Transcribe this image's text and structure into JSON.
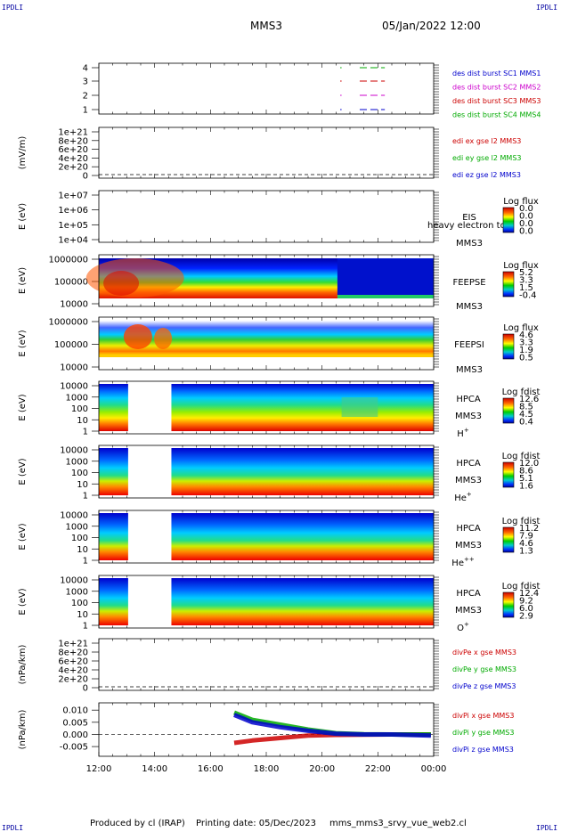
{
  "corner_label": "IPDLI",
  "title": "MMS3",
  "timestamp": "05/Jan/2022 12:00",
  "footer": {
    "produced": "Produced by cl (IRAP)",
    "printing": "Printing date: 05/Dec/2023",
    "script": "mms_mms3_srvy_vue_web2.cl"
  },
  "chart_data": {
    "type": "heatmap",
    "x_ticks": [
      "12:00",
      "14:00",
      "16:00",
      "18:00",
      "20:00",
      "22:00",
      "00:00"
    ],
    "x_range_hours": [
      12,
      24
    ],
    "panels": [
      {
        "id": "burst",
        "type": "line",
        "yticks": [
          "4",
          "3",
          "2",
          "1"
        ],
        "legend": [
          {
            "text": "des dist burst SC1 MMS1",
            "color": "#0000cc"
          },
          {
            "text": "des dist burst SC2 MMS2",
            "color": "#cc00cc"
          },
          {
            "text": "des dist burst SC3 MMS3",
            "color": "#cc0000"
          },
          {
            "text": "des dist burst SC4 MMS4",
            "color": "#00aa00"
          }
        ],
        "series": [
          {
            "level": 4,
            "color": "#00aa00",
            "segments": [
              [
                20.65,
                20.7
              ],
              [
                21.35,
                22.25
              ]
            ]
          },
          {
            "level": 3,
            "color": "#cc0000",
            "segments": [
              [
                20.65,
                20.7
              ],
              [
                21.35,
                22.25
              ]
            ]
          },
          {
            "level": 2,
            "color": "#cc00cc",
            "segments": [
              [
                20.65,
                20.7
              ],
              [
                21.35,
                22.25
              ]
            ]
          },
          {
            "level": 1,
            "color": "#0000cc",
            "segments": [
              [
                20.65,
                20.7
              ],
              [
                21.35,
                22.25
              ]
            ]
          }
        ]
      },
      {
        "id": "edi",
        "type": "line",
        "ylabel": "(mV/m)",
        "yticks": [
          "1e+21",
          "8e+20",
          "6e+20",
          "4e+20",
          "2e+20",
          "0"
        ],
        "legend": [
          {
            "text": "edi ex gse l2 MMS3",
            "color": "#cc0000"
          },
          {
            "text": "edi ey gse l2 MMS3",
            "color": "#00aa00"
          },
          {
            "text": "edi ez gse l2 MMS3",
            "color": "#0000cc"
          }
        ]
      },
      {
        "id": "eis",
        "type": "heatmap",
        "ylabel": "E (eV)",
        "yticks": [
          "1e+07",
          "1e+06",
          "1e+05",
          "1e+04"
        ],
        "name": "EIS",
        "sub": "MMS3",
        "overlay": "heavy electron to",
        "cbar": {
          "title": "Log flux",
          "ticks": [
            "0.0",
            "0.0",
            "0.0",
            "0.0"
          ]
        }
      },
      {
        "id": "feepse",
        "type": "heatmap",
        "ylabel": "E (eV)",
        "yticks": [
          "1000000",
          "100000",
          "10000"
        ],
        "name": "FEEPSE",
        "sub": "MMS3",
        "cbar": {
          "title": "Log flux",
          "ticks": [
            "5.2",
            "3.3",
            "1.5",
            "-0.4"
          ]
        }
      },
      {
        "id": "feepsi",
        "type": "heatmap",
        "ylabel": "E (eV)",
        "yticks": [
          "1000000",
          "100000",
          "10000"
        ],
        "name": "FEEPSI",
        "sub": "MMS3",
        "cbar": {
          "title": "Log flux",
          "ticks": [
            "4.6",
            "3.3",
            "1.9",
            "0.5"
          ]
        }
      },
      {
        "id": "hpca_h",
        "type": "heatmap",
        "ylabel": "E (eV)",
        "yticks": [
          "10000",
          "1000",
          "100",
          "10",
          "1"
        ],
        "name": "HPCA",
        "sub": "MMS3",
        "species": "H",
        "charge": "+",
        "gap_hours": [
          13.05,
          14.6
        ],
        "cbar": {
          "title": "Log fdist",
          "ticks": [
            "12.6",
            "8.5",
            "4.5",
            "0.4"
          ]
        }
      },
      {
        "id": "hpca_he",
        "type": "heatmap",
        "ylabel": "E (eV)",
        "yticks": [
          "10000",
          "1000",
          "100",
          "10",
          "1"
        ],
        "name": "HPCA",
        "sub": "MMS3",
        "species": "He",
        "charge": "+",
        "gap_hours": [
          13.05,
          14.6
        ],
        "cbar": {
          "title": "Log fdist",
          "ticks": [
            "12.0",
            "8.6",
            "5.1",
            "1.6"
          ]
        }
      },
      {
        "id": "hpca_hepp",
        "type": "heatmap",
        "ylabel": "E (eV)",
        "yticks": [
          "10000",
          "1000",
          "100",
          "10",
          "1"
        ],
        "name": "HPCA",
        "sub": "MMS3",
        "species": "He",
        "charge": "++",
        "gap_hours": [
          13.05,
          14.6
        ],
        "cbar": {
          "title": "Log fdist",
          "ticks": [
            "11.2",
            "7.9",
            "4.6",
            "1.3"
          ]
        }
      },
      {
        "id": "hpca_o",
        "type": "heatmap",
        "ylabel": "E (eV)",
        "yticks": [
          "10000",
          "1000",
          "100",
          "10",
          "1"
        ],
        "name": "HPCA",
        "sub": "MMS3",
        "species": "O",
        "charge": "+",
        "gap_hours": [
          13.05,
          14.6
        ],
        "cbar": {
          "title": "Log fdist",
          "ticks": [
            "12.4",
            "9.2",
            "6.0",
            "2.9"
          ]
        }
      },
      {
        "id": "divpe",
        "type": "line",
        "ylabel": "(nPa/km)",
        "yticks": [
          "1e+21",
          "8e+20",
          "6e+20",
          "4e+20",
          "2e+20",
          "0"
        ],
        "legend": [
          {
            "text": "divPe x gse MMS3",
            "color": "#cc0000"
          },
          {
            "text": "divPe y gse MMS3",
            "color": "#00aa00"
          },
          {
            "text": "divPe z gse MMS3",
            "color": "#0000cc"
          }
        ]
      },
      {
        "id": "divpi",
        "type": "line",
        "ylabel": "(nPa/km)",
        "yticks": [
          "0.010",
          "0.005",
          "0.000",
          "-0.005"
        ],
        "ylim": [
          -0.009,
          0.013
        ],
        "legend": [
          {
            "text": "divPi x gse MMS3",
            "color": "#cc0000"
          },
          {
            "text": "divPi y gse MMS3",
            "color": "#00aa00"
          },
          {
            "text": "divPi z gse MMS3",
            "color": "#0000cc"
          }
        ],
        "series": [
          {
            "name": "divPi x gse MMS3",
            "color": "#cc0000",
            "x": [
              16.85,
              17.5,
              18.5,
              19.5,
              20.5,
              21.5,
              22.5,
              23.9
            ],
            "y": [
              -0.0035,
              -0.0025,
              -0.0015,
              -0.0005,
              -0.0002,
              -0.0001,
              0.0,
              0.0
            ]
          },
          {
            "name": "divPi y gse MMS3",
            "color": "#00aa00",
            "x": [
              16.85,
              17.5,
              18.5,
              19.5,
              20.5,
              21.5,
              22.5,
              23.9
            ],
            "y": [
              0.009,
              0.006,
              0.004,
              0.002,
              0.0005,
              0.0001,
              0.0,
              0.0
            ]
          },
          {
            "name": "divPi z gse MMS3",
            "color": "#0000cc",
            "x": [
              16.85,
              17.5,
              18.5,
              19.5,
              20.5,
              21.5,
              22.5,
              23.9
            ],
            "y": [
              0.008,
              0.005,
              0.003,
              0.0015,
              0.0003,
              0.0,
              0.0,
              -0.0005
            ]
          }
        ]
      }
    ]
  }
}
